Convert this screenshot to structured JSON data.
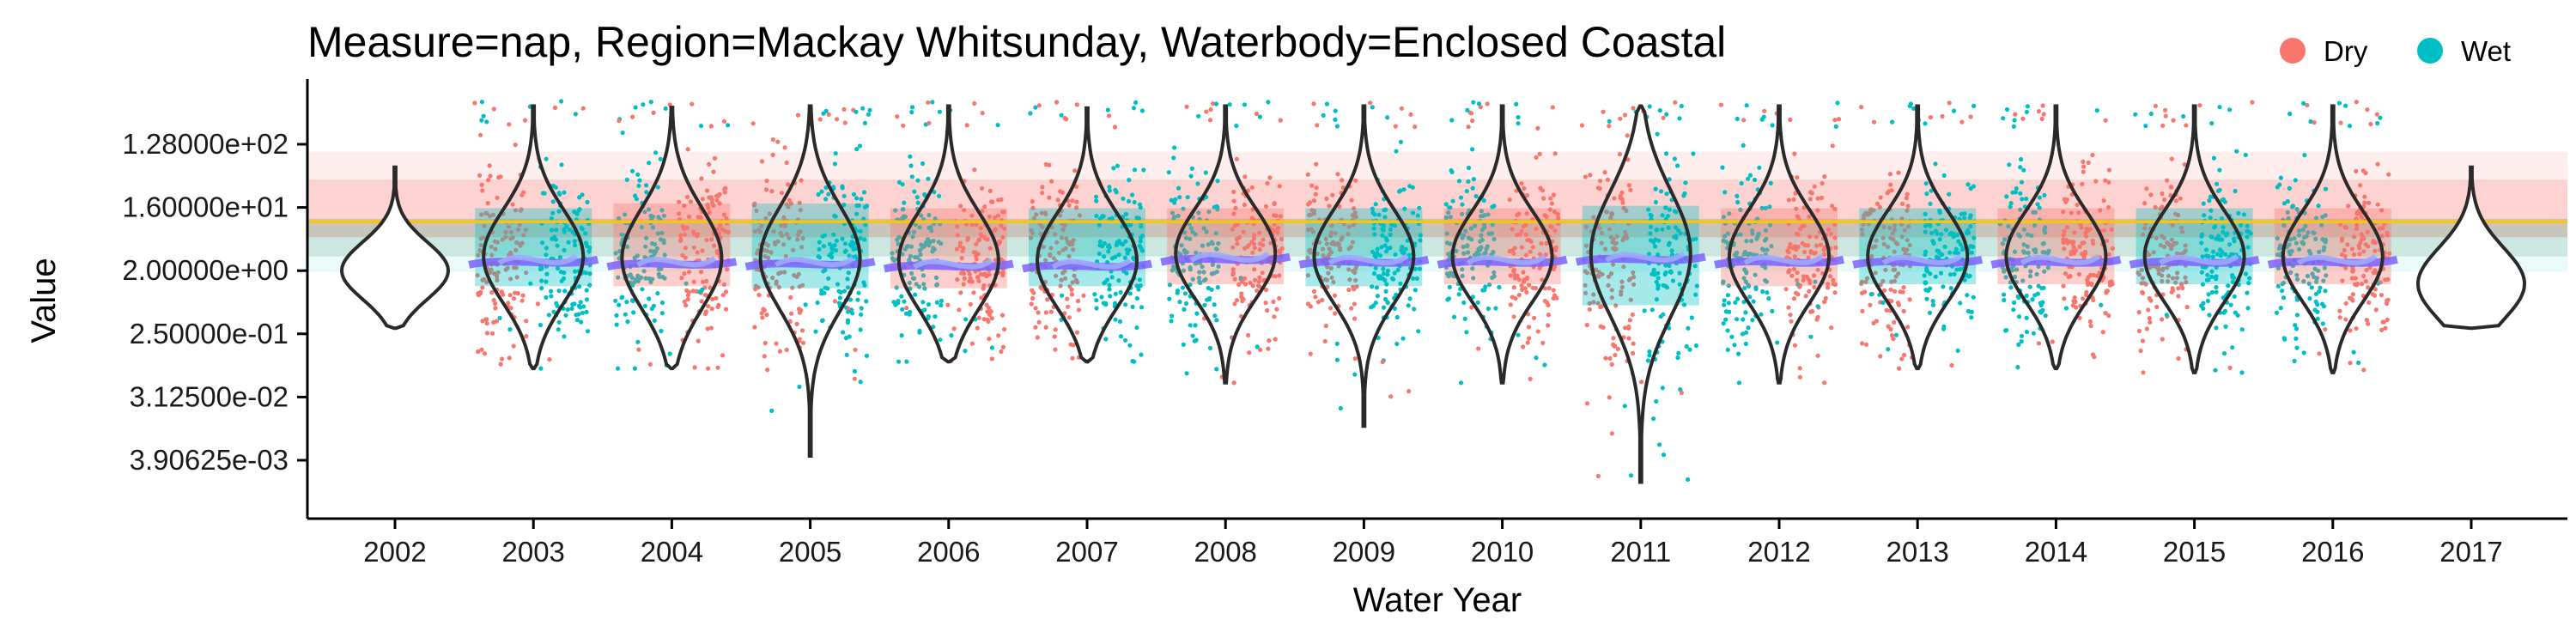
{
  "chart_data": {
    "type": "violin",
    "title": "Measure=nap, Region=Mackay Whitsunday, Waterbody=Enclosed Coastal",
    "xlabel": "Water Year",
    "ylabel": "Value",
    "y_scale": "log2",
    "y_ticks": [
      128,
      16,
      2,
      0.25,
      0.03125,
      0.00390625
    ],
    "y_tick_labels": [
      "1.28000e+02",
      "1.60000e+01",
      "2.00000e+00",
      "2.50000e-01",
      "3.12500e-02",
      "3.90625e-03"
    ],
    "ylim": [
      0.0012,
      500
    ],
    "categories": [
      "2002",
      "2003",
      "2004",
      "2005",
      "2006",
      "2007",
      "2008",
      "2009",
      "2010",
      "2011",
      "2012",
      "2013",
      "2014",
      "2015",
      "2016",
      "2017"
    ],
    "guideline": 10,
    "guideline_color": "#F5C518",
    "legend": {
      "position": "top-right",
      "entries": [
        {
          "name": "Dry",
          "color": "#F8766D"
        },
        {
          "name": "Wet",
          "color": "#00BFC4"
        }
      ]
    },
    "series": [
      {
        "name": "Dry",
        "color": "#F8766D"
      },
      {
        "name": "Wet",
        "color": "#00BFC4"
      }
    ],
    "violins": [
      {
        "year": "2002",
        "min": 0.3,
        "q1": 1.4,
        "median": 2.0,
        "q3": 5.0,
        "max": 60
      },
      {
        "year": "2003",
        "min": 0.08,
        "q1": 1.5,
        "median": 3.2,
        "q3": 12,
        "max": 450
      },
      {
        "year": "2004",
        "min": 0.08,
        "q1": 1.5,
        "median": 3.0,
        "q3": 14,
        "max": 430
      },
      {
        "year": "2005",
        "min": 0.0045,
        "q1": 1.4,
        "median": 3.0,
        "q3": 14,
        "max": 450
      },
      {
        "year": "2006",
        "min": 0.1,
        "q1": 1.4,
        "median": 2.8,
        "q3": 12,
        "max": 450
      },
      {
        "year": "2007",
        "min": 0.1,
        "q1": 1.5,
        "median": 2.8,
        "q3": 12,
        "max": 420
      },
      {
        "year": "2008",
        "min": 0.05,
        "q1": 1.6,
        "median": 3.5,
        "q3": 12,
        "max": 450
      },
      {
        "year": "2009",
        "min": 0.012,
        "q1": 1.5,
        "median": 3.2,
        "q3": 12,
        "max": 450
      },
      {
        "year": "2010",
        "min": 0.05,
        "q1": 1.6,
        "median": 3.2,
        "q3": 12,
        "max": 450
      },
      {
        "year": "2011",
        "min": 0.0019,
        "q1": 0.8,
        "median": 3.5,
        "q3": 13,
        "max": 450
      },
      {
        "year": "2012",
        "min": 0.05,
        "q1": 1.5,
        "median": 3.2,
        "q3": 12,
        "max": 450
      },
      {
        "year": "2013",
        "min": 0.08,
        "q1": 1.6,
        "median": 3.2,
        "q3": 12,
        "max": 450
      },
      {
        "year": "2014",
        "min": 0.08,
        "q1": 1.6,
        "median": 3.2,
        "q3": 12,
        "max": 450
      },
      {
        "year": "2015",
        "min": 0.07,
        "q1": 1.6,
        "median": 3.2,
        "q3": 12,
        "max": 450
      },
      {
        "year": "2016",
        "min": 0.07,
        "q1": 1.6,
        "median": 3.2,
        "q3": 12,
        "max": 450
      },
      {
        "year": "2017",
        "min": 0.3,
        "q1": 1.0,
        "median": 1.3,
        "q3": 5.0,
        "max": 60
      }
    ],
    "reference_bands": [
      {
        "color": "#F8766D",
        "from": 6.0,
        "to": 40
      },
      {
        "color": "#00BFC4",
        "from": 3.2,
        "to": 11
      }
    ]
  }
}
